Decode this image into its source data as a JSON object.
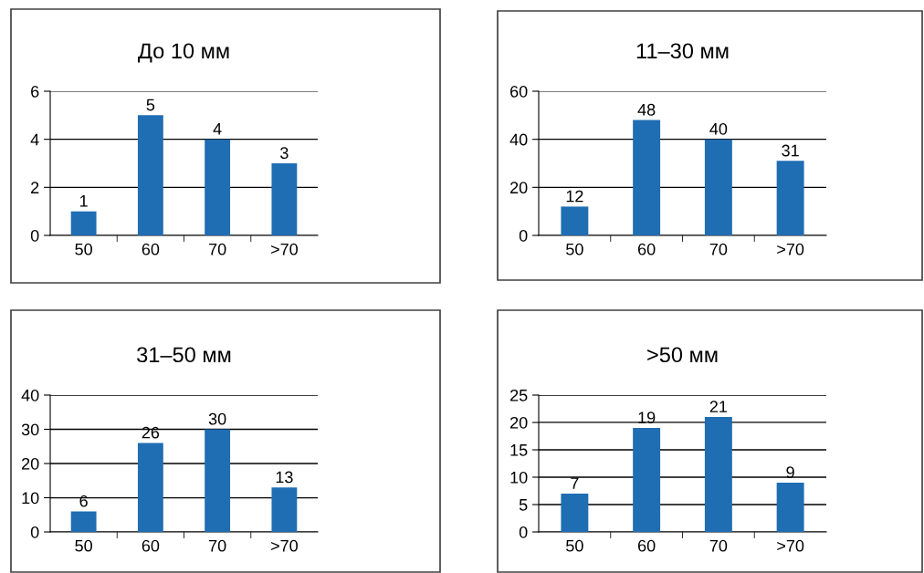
{
  "chart_data": [
    {
      "type": "bar",
      "title": "До 10 мм",
      "categories": [
        "50",
        "60",
        "70",
        ">70"
      ],
      "values": [
        1,
        5,
        4,
        3
      ],
      "color": "#1f6db3",
      "ylim": [
        0,
        6
      ],
      "yticks": [
        0,
        2,
        4,
        6
      ],
      "grid": "y",
      "data_labels": true
    },
    {
      "type": "bar",
      "title": "11–30 мм",
      "categories": [
        "50",
        "60",
        "70",
        ">70"
      ],
      "values": [
        12,
        48,
        40,
        31
      ],
      "color": "#1f6db3",
      "ylim": [
        0,
        60
      ],
      "yticks": [
        0,
        20,
        40,
        60
      ],
      "grid": "y",
      "data_labels": true
    },
    {
      "type": "bar",
      "title": "31–50 мм",
      "categories": [
        "50",
        "60",
        "70",
        ">70"
      ],
      "values": [
        6,
        26,
        30,
        13
      ],
      "color": "#1f6db3",
      "ylim": [
        0,
        40
      ],
      "yticks": [
        0,
        10,
        20,
        30,
        40
      ],
      "grid": "y",
      "data_labels": true
    },
    {
      "type": "bar",
      "title": ">50 мм",
      "categories": [
        "50",
        "60",
        "70",
        ">70"
      ],
      "values": [
        7,
        19,
        21,
        9
      ],
      "color": "#1f6db3",
      "ylim": [
        0,
        25
      ],
      "yticks": [
        0,
        5,
        10,
        15,
        20,
        25
      ],
      "grid": "y",
      "data_labels": true
    }
  ]
}
